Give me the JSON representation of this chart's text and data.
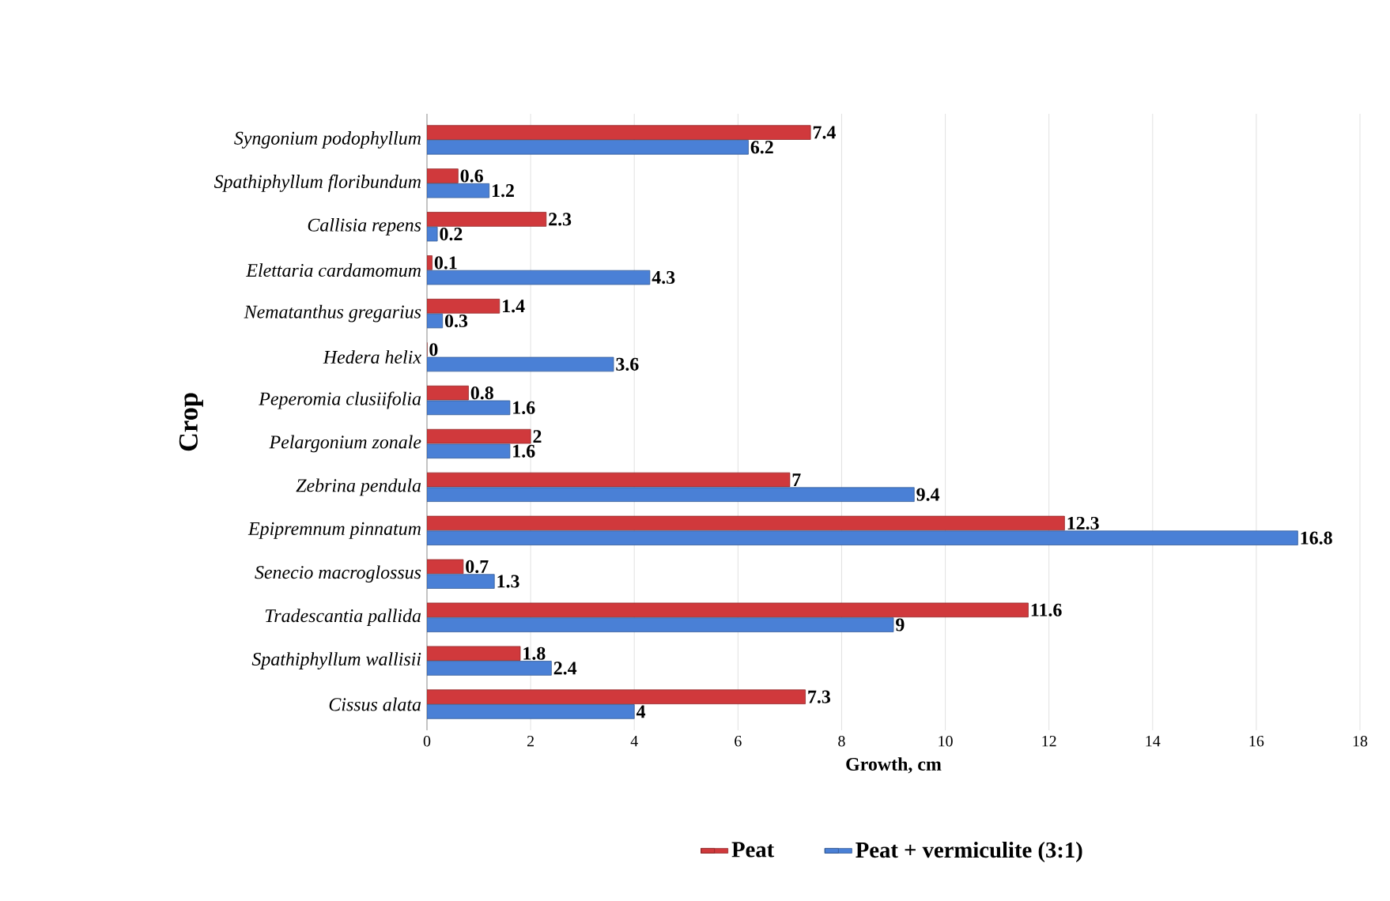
{
  "chart_data": {
    "type": "bar",
    "orientation": "horizontal",
    "categories": [
      "Syngonium podophyllum",
      "Spathiphyllum floribundum",
      "Callisia repens",
      "Elettaria cardamomum",
      "Nematanthus gregarius",
      "Hedera helix",
      "Peperomia clusiifolia",
      "Pelargonium zonale",
      "Zebrina pendula",
      "Epipremnum pinnatum",
      "Senecio macroglossus",
      "Tradescantia pallida",
      "Spathiphyllum wallisii",
      "Cissus alata"
    ],
    "series": [
      {
        "name": "Peat",
        "color": "#d0393c",
        "values": [
          7.4,
          0.6,
          2.3,
          0.1,
          1.4,
          0,
          0.8,
          2,
          7,
          12.3,
          0.7,
          11.6,
          1.8,
          7.3
        ]
      },
      {
        "name": "Peat + vermiculite (3:1)",
        "color": "#4a80d6",
        "values": [
          6.2,
          1.2,
          0.2,
          4.3,
          0.3,
          3.6,
          1.6,
          1.6,
          9.4,
          16.8,
          1.3,
          9,
          2.4,
          4
        ]
      }
    ],
    "xlim": [
      0,
      18
    ],
    "xticks": [
      0,
      2,
      4,
      6,
      8,
      10,
      12,
      14,
      16,
      18
    ],
    "xlabel": "Growth, cm",
    "ylabel": "Crop",
    "grid": "x",
    "legend": "bottom",
    "data_labels": true
  }
}
